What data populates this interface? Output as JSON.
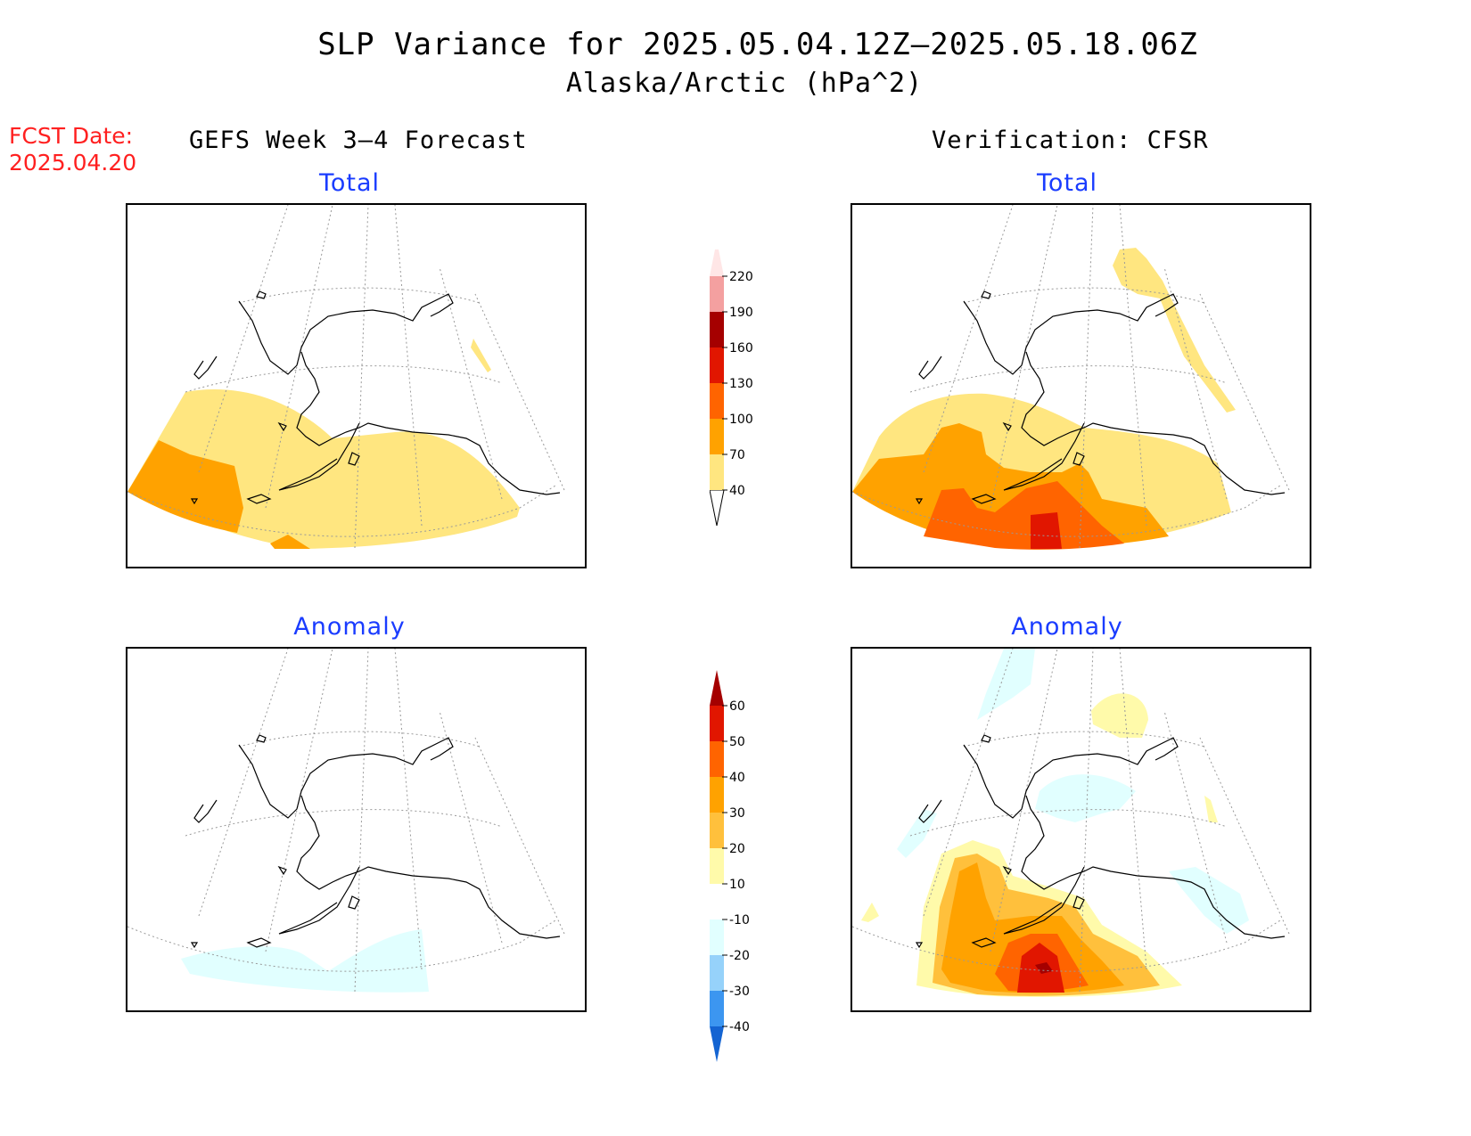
{
  "header": {
    "title": "SLP Variance for 2025.05.04.12Z–2025.05.18.06Z",
    "subtitle": "Alaska/Arctic (hPa^2)",
    "fcst_label": "FCST Date:",
    "fcst_date": "2025.04.20"
  },
  "columns": {
    "left": "GEFS Week 3–4 Forecast",
    "right": "Verification: CFSR"
  },
  "panels": {
    "forecast_total": {
      "label": "Total"
    },
    "forecast_anomaly": {
      "label": "Anomaly"
    },
    "verif_total": {
      "label": "Total"
    },
    "verif_anomaly": {
      "label": "Anomaly"
    }
  },
  "colorbar_total": {
    "ticks": [
      "40",
      "70",
      "100",
      "130",
      "160",
      "190",
      "220"
    ],
    "colors": [
      "#ffe680",
      "#ffa200",
      "#ff6400",
      "#e11600",
      "#a50000",
      "#f4a0a0",
      "#ffe6e6"
    ]
  },
  "colorbar_anomaly": {
    "ticks": [
      "60",
      "50",
      "40",
      "30",
      "20",
      "10",
      "-10",
      "-20",
      "-30",
      "-40"
    ],
    "colors_top_to_bottom": [
      "#a50000",
      "#e11600",
      "#ff6400",
      "#ffa200",
      "#ffc03c",
      "#fffaaa",
      "#ffffff",
      "#e1ffff",
      "#96d2fa",
      "#3c96f0",
      "#1464d2"
    ]
  }
}
